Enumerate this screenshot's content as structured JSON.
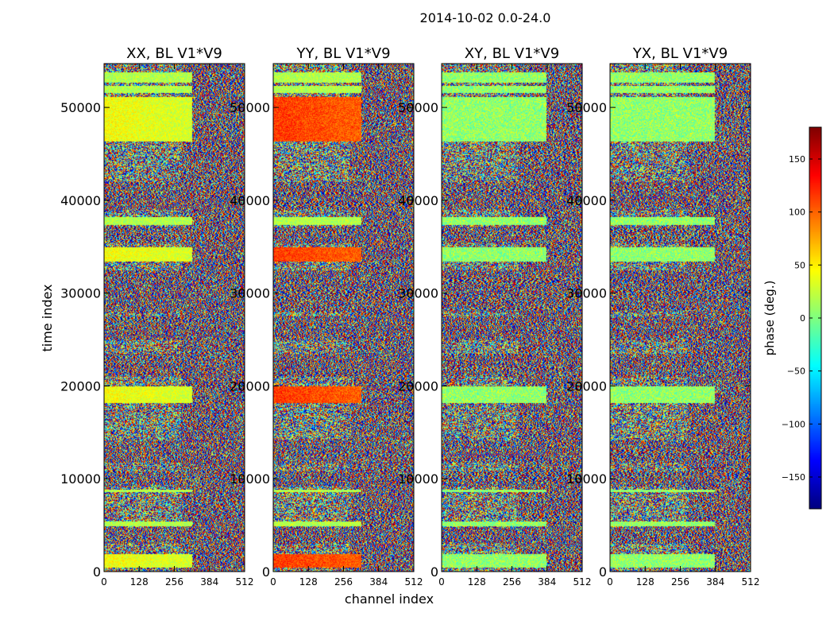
{
  "chart_data": {
    "type": "heatmap",
    "suptitle": "2014-10-02 0.0-24.0",
    "xlabel": "channel index",
    "ylabel": "time index",
    "xlim": [
      0,
      512
    ],
    "ylim": [
      0,
      54720
    ],
    "xticks": [
      0,
      128,
      256,
      384,
      512
    ],
    "yticks": [
      0,
      10000,
      20000,
      30000,
      40000,
      50000
    ],
    "panels": [
      {
        "title": "XX, BL V1*V9",
        "polarization": "XX"
      },
      {
        "title": "YY, BL V1*V9",
        "polarization": "YY"
      },
      {
        "title": "XY, BL V1*V9",
        "polarization": "XY"
      },
      {
        "title": "YX, BL V1*V9",
        "polarization": "YX"
      }
    ],
    "colorbar": {
      "label": "phase (deg.)",
      "range": [
        -180,
        180
      ],
      "ticks": [
        -150,
        -100,
        -50,
        0,
        50,
        100,
        150
      ],
      "tick_labels": [
        "−150",
        "−100",
        "−50",
        "0",
        "50",
        "100",
        "150"
      ],
      "colormap": "jet"
    }
  }
}
